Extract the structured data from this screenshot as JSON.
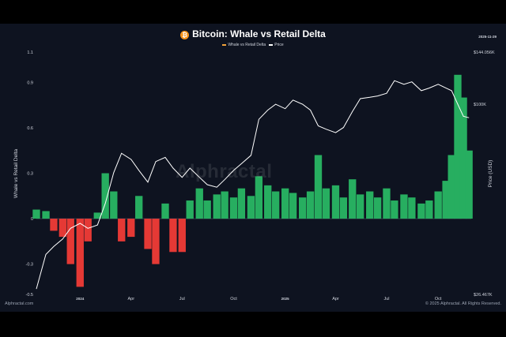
{
  "header": {
    "title": "Bitcoin: Whale vs Retail Delta",
    "date": "2025-11-29",
    "icon": "bitcoin-icon"
  },
  "legend": {
    "items": [
      {
        "label": "Whale vs Retail Delta",
        "color": "#f2a23a"
      },
      {
        "label": "Price",
        "color": "#ffffff"
      }
    ]
  },
  "watermark": "Alphractal",
  "footer": {
    "left": "Alphractal.com",
    "right": "© 2025 Alphractal. All Rights Reserved."
  },
  "chart_data": {
    "type": "bar",
    "x_tick_labels": [
      "2024",
      "Apr",
      "Jul",
      "Oct",
      "2025",
      "Apr",
      "Jul",
      "Oct"
    ],
    "y_left": {
      "label": "Whale vs Retail Delta",
      "ticks": [
        "1.1",
        "0.9",
        "0.6",
        "0.3",
        "0",
        "-0.3",
        "-0.5"
      ],
      "range": [
        -0.5,
        1.1
      ]
    },
    "y_right": {
      "label": "Price (USD)",
      "ticks": [
        "$144.056K",
        "$100K",
        "$26.467K"
      ],
      "scale": "log",
      "range": [
        26467,
        144056
      ]
    },
    "colors": {
      "positive": "#27ae60",
      "negative": "#e53935",
      "price": "#ffffff"
    },
    "series": [
      {
        "name": "Whale vs Retail Delta",
        "kind": "bar",
        "x": [
          "2023-10-15",
          "2023-11-01",
          "2023-11-15",
          "2023-12-01",
          "2023-12-15",
          "2024-01-01",
          "2024-01-15",
          "2024-02-01",
          "2024-02-15",
          "2024-03-01",
          "2024-03-15",
          "2024-04-01",
          "2024-04-15",
          "2024-05-01",
          "2024-05-15",
          "2024-06-01",
          "2024-06-15",
          "2024-07-01",
          "2024-07-15",
          "2024-08-01",
          "2024-08-15",
          "2024-09-01",
          "2024-09-15",
          "2024-10-01",
          "2024-10-15",
          "2024-11-01",
          "2024-11-15",
          "2024-12-01",
          "2024-12-15",
          "2025-01-01",
          "2025-01-15",
          "2025-02-01",
          "2025-02-15",
          "2025-03-01",
          "2025-03-15",
          "2025-04-01",
          "2025-04-15",
          "2025-05-01",
          "2025-05-15",
          "2025-06-01",
          "2025-06-15",
          "2025-07-01",
          "2025-07-15",
          "2025-08-01",
          "2025-08-15",
          "2025-09-01",
          "2025-09-15",
          "2025-10-01",
          "2025-10-15",
          "2025-10-25",
          "2025-11-05",
          "2025-11-15",
          "2025-11-25"
        ],
        "values": [
          0.06,
          0.05,
          -0.08,
          -0.12,
          -0.3,
          -0.45,
          -0.15,
          0.04,
          0.3,
          0.18,
          -0.15,
          -0.12,
          0.15,
          -0.2,
          -0.3,
          0.1,
          -0.22,
          -0.22,
          0.12,
          0.2,
          0.12,
          0.16,
          0.18,
          0.14,
          0.2,
          0.15,
          0.28,
          0.22,
          0.18,
          0.2,
          0.17,
          0.14,
          0.18,
          0.42,
          0.2,
          0.22,
          0.14,
          0.26,
          0.16,
          0.18,
          0.14,
          0.2,
          0.12,
          0.16,
          0.14,
          0.1,
          0.12,
          0.18,
          0.25,
          0.42,
          0.95,
          0.8,
          0.45
        ]
      },
      {
        "name": "Price",
        "kind": "line",
        "x": [
          "2023-10-15",
          "2023-11-01",
          "2023-11-15",
          "2023-12-01",
          "2023-12-15",
          "2024-01-01",
          "2024-01-15",
          "2024-02-01",
          "2024-02-15",
          "2024-03-01",
          "2024-03-15",
          "2024-04-01",
          "2024-04-15",
          "2024-05-01",
          "2024-05-15",
          "2024-06-01",
          "2024-06-15",
          "2024-07-01",
          "2024-07-15",
          "2024-08-01",
          "2024-08-15",
          "2024-09-01",
          "2024-09-15",
          "2024-10-01",
          "2024-10-15",
          "2024-11-01",
          "2024-11-15",
          "2024-12-01",
          "2024-12-15",
          "2025-01-01",
          "2025-01-15",
          "2025-02-01",
          "2025-02-15",
          "2025-03-01",
          "2025-03-15",
          "2025-04-01",
          "2025-04-15",
          "2025-05-01",
          "2025-05-15",
          "2025-06-01",
          "2025-06-15",
          "2025-07-01",
          "2025-07-15",
          "2025-08-01",
          "2025-08-15",
          "2025-09-01",
          "2025-09-15",
          "2025-10-01",
          "2025-10-15",
          "2025-10-25",
          "2025-11-05",
          "2025-11-15",
          "2025-11-25"
        ],
        "values": [
          27500,
          35000,
          37000,
          39000,
          42000,
          43500,
          42000,
          43000,
          50000,
          62000,
          71000,
          68000,
          63000,
          58000,
          67000,
          69000,
          64000,
          60000,
          64000,
          60000,
          57000,
          56000,
          59000,
          63000,
          66000,
          70000,
          90000,
          96000,
          100000,
          97000,
          103000,
          100000,
          96000,
          86000,
          84000,
          82000,
          85000,
          95000,
          104000,
          105000,
          106000,
          108000,
          118000,
          115000,
          117000,
          110000,
          112000,
          115000,
          112000,
          110000,
          100000,
          92000,
          91000
        ]
      }
    ]
  }
}
